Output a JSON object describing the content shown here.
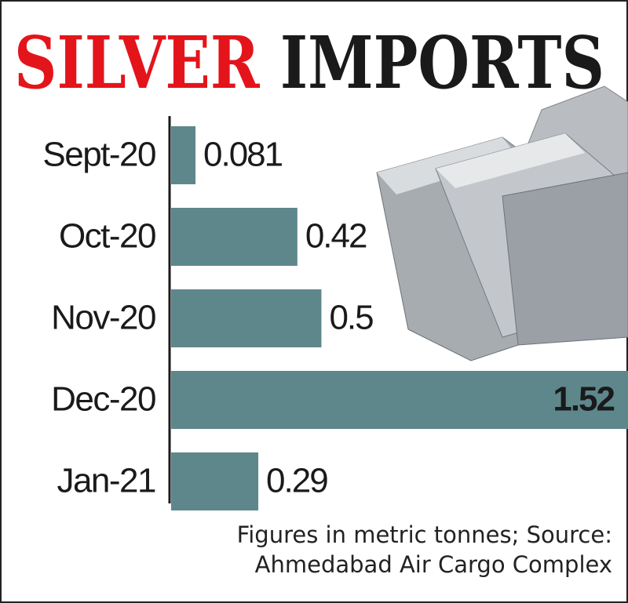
{
  "chart_data": {
    "type": "bar",
    "orientation": "horizontal",
    "title": [
      "SILVER",
      "IMPORTS"
    ],
    "title_colors": [
      "#e3151b",
      "#1a1a1a"
    ],
    "categories": [
      "Sept-20",
      "Oct-20",
      "Nov-20",
      "Dec-20",
      "Jan-21"
    ],
    "values": [
      0.081,
      0.42,
      0.5,
      1.52,
      0.29
    ],
    "color": "#5e878c",
    "note": [
      "Figures in metric tonnes; Source:",
      "Ahmedabad Air Cargo Complex"
    ]
  }
}
